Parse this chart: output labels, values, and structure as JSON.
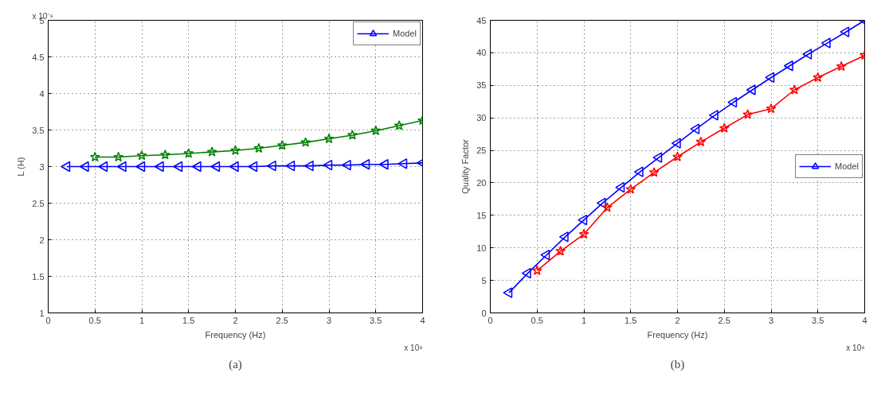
{
  "chart_data": [
    {
      "type": "line",
      "xlabel": "Frequency (Hz)",
      "ylabel": "L (H)",
      "annotations": [
        "x 10⁻⁹",
        "x 10⁹",
        "(a)"
      ],
      "xlim": [
        0,
        4
      ],
      "xticks": [
        0,
        0.5,
        1,
        1.5,
        2,
        2.5,
        3,
        3.5,
        4
      ],
      "ylim": [
        1,
        5
      ],
      "yticks": [
        1,
        1.5,
        2,
        2.5,
        3,
        3.5,
        4,
        4.5,
        5
      ],
      "grid": true,
      "legend": "top right",
      "line_style": "solid",
      "series": [
        {
          "name": "Model",
          "color": "#0000ff",
          "marker": "triangle",
          "x": [
            0.2,
            0.4,
            0.6,
            0.8,
            1.0,
            1.2,
            1.4,
            1.6,
            1.8,
            2.0,
            2.2,
            2.4,
            2.6,
            2.8,
            3.0,
            3.2,
            3.4,
            3.6,
            3.8,
            4.0
          ],
          "values": [
            3.0,
            3.0,
            3.0,
            3.0,
            3.0,
            3.0,
            3.0,
            3.0,
            3.0,
            3.0,
            3.0,
            3.01,
            3.01,
            3.01,
            3.02,
            3.02,
            3.03,
            3.03,
            3.04,
            3.05
          ]
        },
        {
          "color": "#008000",
          "marker": "star",
          "x": [
            0.5,
            0.75,
            1.0,
            1.25,
            1.5,
            1.75,
            2.0,
            2.25,
            2.5,
            2.75,
            3.0,
            3.25,
            3.5,
            3.75,
            4.0
          ],
          "values": [
            3.13,
            3.13,
            3.15,
            3.16,
            3.18,
            3.2,
            3.22,
            3.25,
            3.29,
            3.33,
            3.38,
            3.43,
            3.49,
            3.56,
            3.63
          ]
        }
      ]
    },
    {
      "type": "line",
      "xlabel": "Frequency (Hz)",
      "ylabel": "Quality Factor",
      "annotations": [
        "x 10⁹",
        "(b)"
      ],
      "xlim": [
        0,
        4
      ],
      "xticks": [
        0,
        0.5,
        1,
        1.5,
        2,
        2.5,
        3,
        3.5,
        4
      ],
      "ylim": [
        0,
        45
      ],
      "yticks": [
        0,
        5,
        10,
        15,
        20,
        25,
        30,
        35,
        40,
        45
      ],
      "grid": true,
      "legend": "right",
      "line_style": "solid",
      "series": [
        {
          "name": "Model",
          "color": "#0000ff",
          "marker": "triangle",
          "x": [
            0.2,
            0.4,
            0.6,
            0.8,
            1.0,
            1.2,
            1.4,
            1.6,
            1.8,
            2.0,
            2.2,
            2.4,
            2.6,
            2.8,
            3.0,
            3.2,
            3.4,
            3.6,
            3.8,
            4.0
          ],
          "values": [
            3.1,
            6.1,
            8.9,
            11.7,
            14.3,
            16.9,
            19.3,
            21.7,
            23.9,
            26.1,
            28.3,
            30.4,
            32.4,
            34.3,
            36.2,
            38.0,
            39.8,
            41.5,
            43.2,
            45.0
          ]
        },
        {
          "color": "#ff0000",
          "marker": "star",
          "x": [
            0.5,
            0.75,
            1.0,
            1.25,
            1.5,
            1.75,
            2.0,
            2.25,
            2.5,
            2.75,
            3.0,
            3.25,
            3.5,
            3.75,
            4.0
          ],
          "values": [
            6.5,
            9.5,
            12.1,
            16.2,
            19.0,
            21.6,
            24.0,
            26.3,
            28.4,
            30.5,
            31.4,
            34.3,
            36.2,
            37.9,
            39.6
          ]
        }
      ]
    }
  ]
}
